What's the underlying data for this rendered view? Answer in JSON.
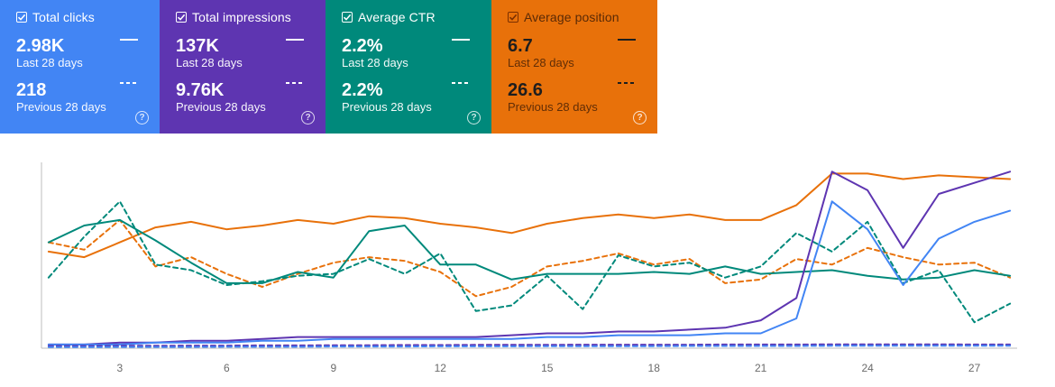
{
  "cards": [
    {
      "title": "Total clicks",
      "value": "2.98K",
      "period": "Last 28 days",
      "prev_value": "218",
      "prev_period": "Previous 28 days",
      "color": "#4285f4",
      "help": "?"
    },
    {
      "title": "Total impressions",
      "value": "137K",
      "period": "Last 28 days",
      "prev_value": "9.76K",
      "prev_period": "Previous 28 days",
      "color": "#5e35b1",
      "help": "?"
    },
    {
      "title": "Average CTR",
      "value": "2.2%",
      "period": "Last 28 days",
      "prev_value": "2.2%",
      "prev_period": "Previous 28 days",
      "color": "#00897b",
      "help": "?"
    },
    {
      "title": "Average position",
      "value": "6.7",
      "period": "Last 28 days",
      "prev_value": "26.6",
      "prev_period": "Previous 28 days",
      "color": "#e8710a",
      "help": "?"
    }
  ],
  "chart_data": {
    "type": "line",
    "x": [
      1,
      2,
      3,
      4,
      5,
      6,
      7,
      8,
      9,
      10,
      11,
      12,
      13,
      14,
      15,
      16,
      17,
      18,
      19,
      20,
      21,
      22,
      23,
      24,
      25,
      26,
      27,
      28
    ],
    "xticks": [
      3,
      6,
      9,
      12,
      15,
      18,
      21,
      24,
      27
    ],
    "ylim": [
      0,
      1
    ],
    "grid": false,
    "yaxis_labels": false,
    "series": [
      {
        "color": "#e8710a",
        "style": "solid",
        "values": [
          0.52,
          0.49,
          0.57,
          0.65,
          0.68,
          0.64,
          0.66,
          0.69,
          0.67,
          0.71,
          0.7,
          0.67,
          0.65,
          0.62,
          0.67,
          0.7,
          0.72,
          0.7,
          0.72,
          0.69,
          0.69,
          0.77,
          0.94,
          0.94,
          0.91,
          0.93,
          0.92,
          0.91
        ]
      },
      {
        "color": "#e8710a",
        "style": "dashed",
        "values": [
          0.57,
          0.53,
          0.69,
          0.44,
          0.49,
          0.4,
          0.33,
          0.4,
          0.46,
          0.49,
          0.47,
          0.41,
          0.28,
          0.33,
          0.44,
          0.47,
          0.51,
          0.45,
          0.48,
          0.35,
          0.37,
          0.48,
          0.45,
          0.54,
          0.49,
          0.45,
          0.46,
          0.38
        ]
      },
      {
        "color": "#00897b",
        "style": "solid",
        "values": [
          0.57,
          0.66,
          0.69,
          0.58,
          0.46,
          0.35,
          0.35,
          0.41,
          0.38,
          0.63,
          0.66,
          0.45,
          0.45,
          0.37,
          0.4,
          0.4,
          0.4,
          0.41,
          0.4,
          0.44,
          0.4,
          0.41,
          0.42,
          0.39,
          0.37,
          0.38,
          0.42,
          0.39
        ]
      },
      {
        "color": "#00897b",
        "style": "dashed",
        "values": [
          0.38,
          0.6,
          0.79,
          0.45,
          0.42,
          0.34,
          0.36,
          0.39,
          0.4,
          0.48,
          0.4,
          0.51,
          0.2,
          0.23,
          0.39,
          0.21,
          0.5,
          0.44,
          0.46,
          0.38,
          0.44,
          0.62,
          0.52,
          0.68,
          0.35,
          0.42,
          0.14,
          0.24
        ]
      },
      {
        "color": "#5e35b1",
        "style": "solid",
        "values": [
          0.02,
          0.02,
          0.03,
          0.03,
          0.04,
          0.04,
          0.05,
          0.06,
          0.06,
          0.06,
          0.06,
          0.06,
          0.06,
          0.07,
          0.08,
          0.08,
          0.09,
          0.09,
          0.1,
          0.11,
          0.15,
          0.27,
          0.95,
          0.85,
          0.54,
          0.83,
          0.89,
          0.95
        ]
      },
      {
        "color": "#4285f4",
        "style": "solid",
        "values": [
          0.02,
          0.02,
          0.02,
          0.03,
          0.03,
          0.03,
          0.04,
          0.04,
          0.05,
          0.05,
          0.05,
          0.05,
          0.05,
          0.05,
          0.06,
          0.06,
          0.07,
          0.07,
          0.07,
          0.08,
          0.08,
          0.16,
          0.79,
          0.64,
          0.34,
          0.59,
          0.68,
          0.74
        ]
      },
      {
        "color": "#5e35b1",
        "style": "dashed",
        "values": [
          0.012,
          0.012,
          0.013,
          0.013,
          0.014,
          0.014,
          0.015,
          0.015,
          0.016,
          0.016,
          0.017,
          0.017,
          0.018,
          0.018,
          0.018,
          0.019,
          0.019,
          0.019,
          0.019,
          0.02,
          0.02,
          0.02,
          0.021,
          0.021,
          0.021,
          0.021,
          0.02,
          0.02
        ]
      },
      {
        "color": "#4285f4",
        "style": "dashed",
        "values": [
          0.006,
          0.006,
          0.007,
          0.007,
          0.007,
          0.008,
          0.008,
          0.008,
          0.009,
          0.009,
          0.009,
          0.01,
          0.01,
          0.01,
          0.011,
          0.011,
          0.011,
          0.011,
          0.012,
          0.012,
          0.012,
          0.012,
          0.013,
          0.013,
          0.013,
          0.013,
          0.013,
          0.013
        ]
      }
    ]
  }
}
